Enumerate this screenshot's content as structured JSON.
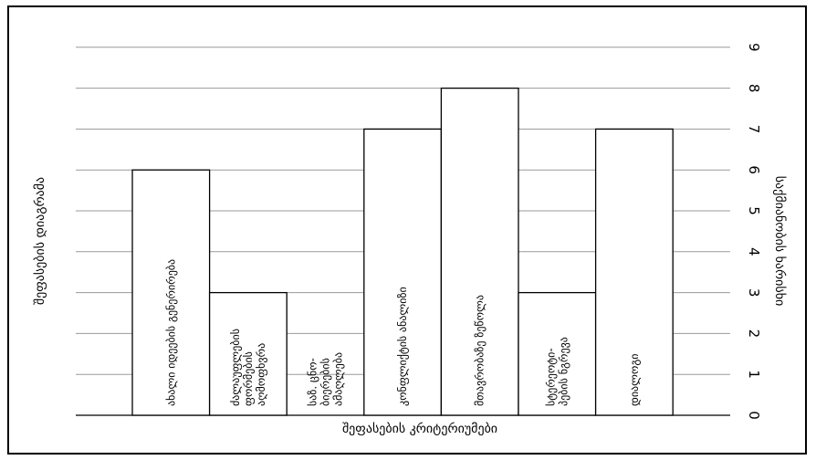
{
  "chart_data": {
    "type": "bar",
    "title": "",
    "xlabel": "შეფასების კრიტერიუმები",
    "ylabel_left": "შეფასების დიაგრამა",
    "ylabel_right": "საქმიანობის ხარისხი",
    "ylim": [
      0,
      9
    ],
    "yticks": [
      "0",
      "1",
      "2",
      "3",
      "4",
      "5",
      "6",
      "7",
      "8",
      "9"
    ],
    "grid": true,
    "categories": [
      [
        "ახალი იდეების გენერირება"
      ],
      [
        "ძალაუფლების",
        "ფორმების",
        "აღმოფხვრა"
      ],
      [
        "საზ. ცნო-",
        "ბიერების",
        "ამაღლება"
      ],
      [
        "კონფლიქტის ანალიზი"
      ],
      [
        "მთავრობაზე ზეწოლა"
      ],
      [
        "სტერეოტი-",
        "პების ნგრევა"
      ],
      [
        "დიალოგი"
      ]
    ],
    "values": [
      6,
      3,
      0,
      7,
      8,
      3,
      7
    ]
  }
}
